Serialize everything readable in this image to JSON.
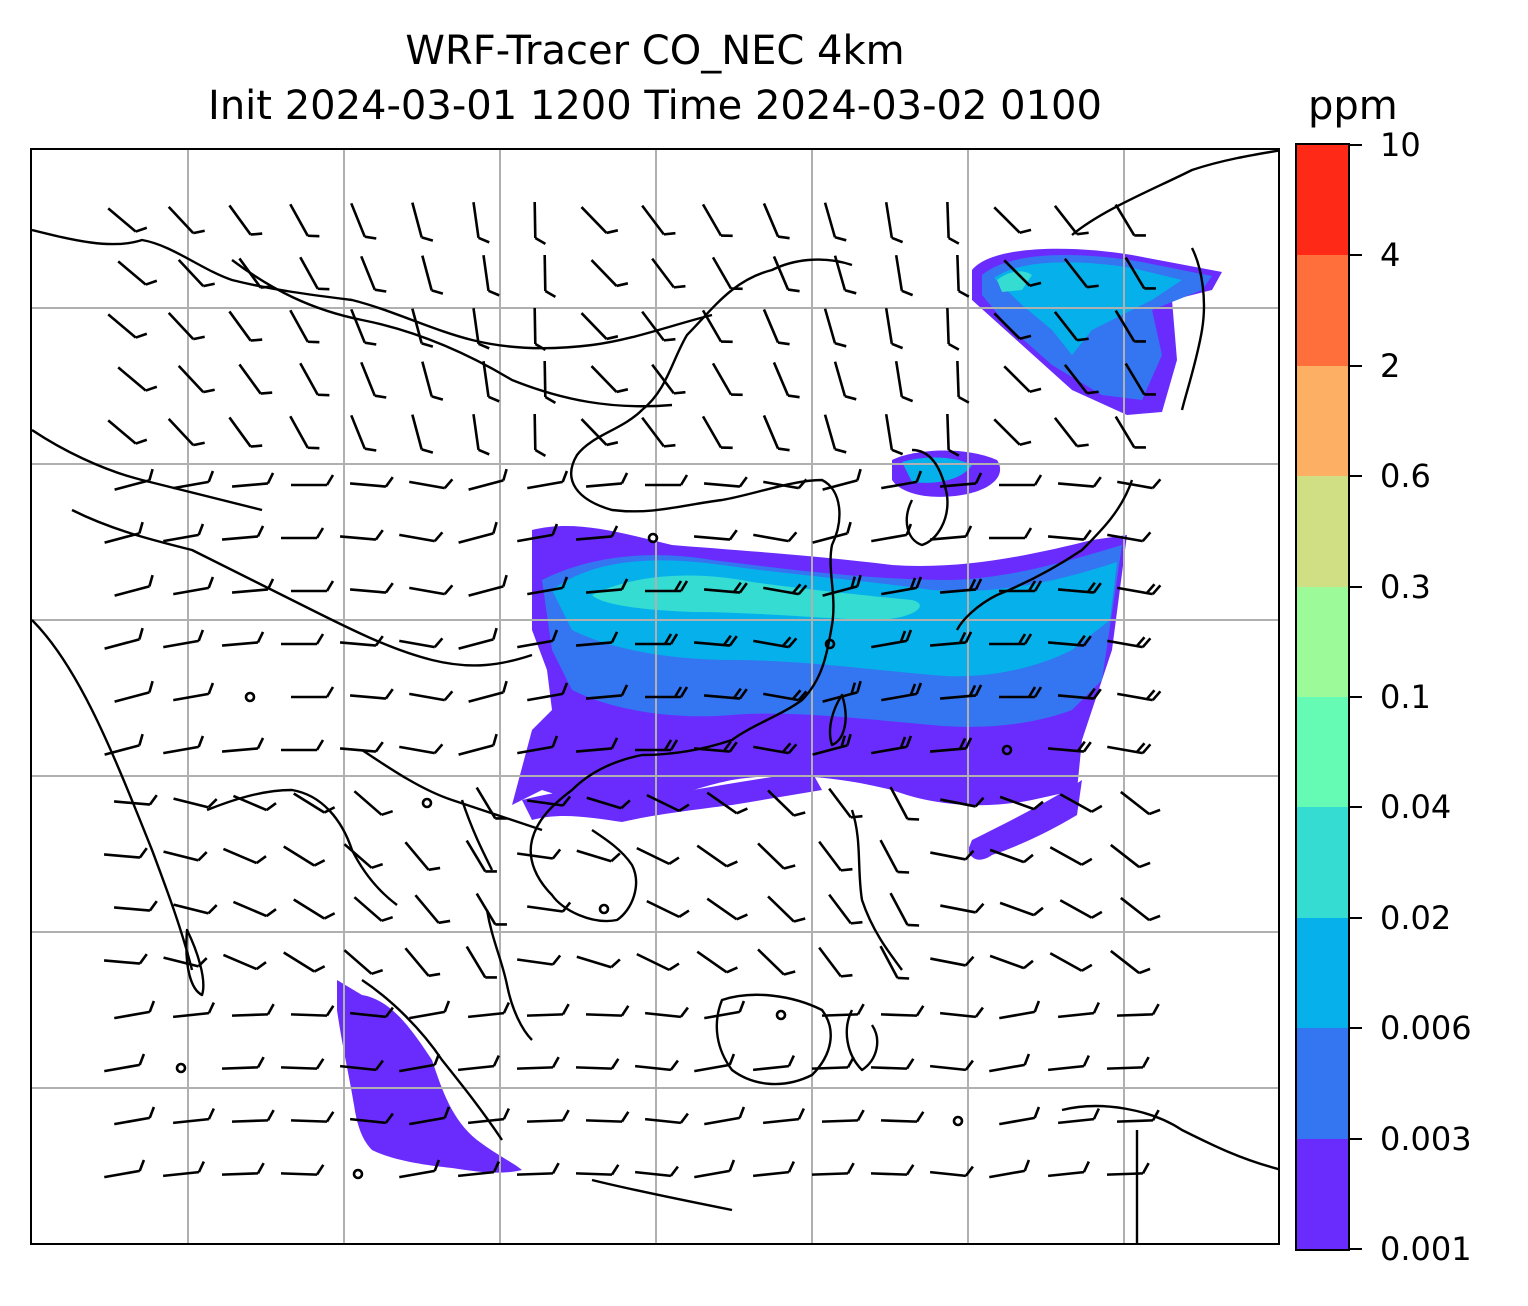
{
  "title": {
    "line1": "WRF-Tracer CO_NEC 4km",
    "line2": "Init 2024-03-01 1200 Time 2024-03-02 0100"
  },
  "colorbar": {
    "unit": "ppm",
    "tick_labels": [
      "0.001",
      "0.003",
      "0.006",
      "0.02",
      "0.04",
      "0.1",
      "0.3",
      "0.6",
      "2",
      "4",
      "10"
    ],
    "colors": [
      "#6a2cfd",
      "#3475f1",
      "#06b0ea",
      "#35dcd2",
      "#66fbb5",
      "#9cfb98",
      "#d0df84",
      "#fdaf63",
      "#fe6f3b",
      "#fe2a17"
    ]
  },
  "map": {
    "gridlines": "on",
    "coastline_color": "#000000",
    "wind_barb_color": "#000000",
    "plume_regions": [
      "northeast-asia-plume",
      "china-taiwan-east-plume",
      "south-china-sea-strip",
      "philippine-sea-strip",
      "sumatra-indian-ocean-plume"
    ]
  }
}
